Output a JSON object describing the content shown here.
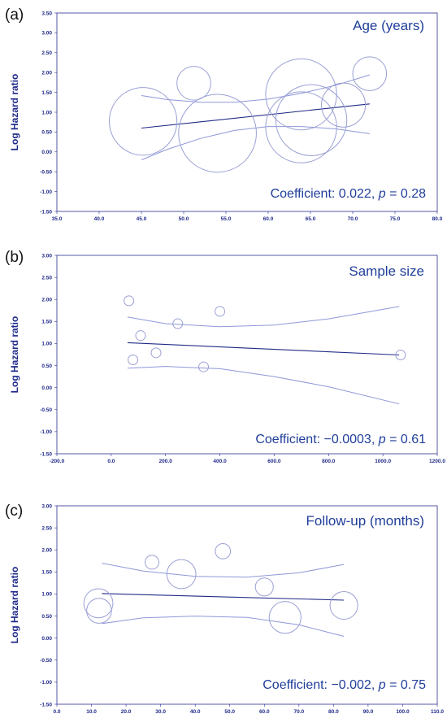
{
  "chart_data": [
    {
      "type": "scatter",
      "panel_label": "(a)",
      "title": "Age (years)",
      "ylabel": "Log Hazard ratio",
      "coefficient_prefix": "Coefficient: 0.022, ",
      "p_symbol": "p",
      "p_value": " = 0.28",
      "xlim": [
        35,
        80
      ],
      "ylim": [
        -1.5,
        3.5
      ],
      "x_ticks": [
        "35.0",
        "40.0",
        "45.0",
        "50.0",
        "55.0",
        "60.0",
        "65.0",
        "70.0",
        "75.0",
        "80.0"
      ],
      "y_ticks": [
        "3.50",
        "3.00",
        "2.50",
        "2.00",
        "1.50",
        "1.00",
        "0.50",
        "0.00",
        "-0.50",
        "-1.00",
        "-1.50"
      ],
      "points": [
        {
          "x": 45.2,
          "y": 0.77,
          "r": 4.0
        },
        {
          "x": 51.2,
          "y": 1.73,
          "r": 2.0
        },
        {
          "x": 54.0,
          "y": 0.47,
          "r": 4.6
        },
        {
          "x": 63.9,
          "y": 1.45,
          "r": 4.2
        },
        {
          "x": 63.9,
          "y": 0.62,
          "r": 4.2
        },
        {
          "x": 65.1,
          "y": 0.8,
          "r": 4.2
        },
        {
          "x": 68.9,
          "y": 1.18,
          "r": 2.6
        },
        {
          "x": 72.0,
          "y": 1.97,
          "r": 2.0
        }
      ],
      "fit_line": {
        "x": [
          45.0,
          72.0
        ],
        "y": [
          0.6,
          1.21
        ]
      },
      "ci_upper": {
        "x": [
          45.0,
          48.0,
          52.0,
          56.0,
          60.0,
          64.0,
          68.0,
          72.0
        ],
        "y": [
          1.42,
          1.32,
          1.25,
          1.25,
          1.33,
          1.48,
          1.68,
          1.94
        ]
      },
      "ci_lower": {
        "x": [
          45.0,
          48.0,
          52.0,
          56.0,
          60.0,
          64.0,
          68.0,
          72.0
        ],
        "y": [
          -0.2,
          0.06,
          0.34,
          0.54,
          0.64,
          0.64,
          0.58,
          0.46
        ]
      }
    },
    {
      "type": "scatter",
      "panel_label": "(b)",
      "title": "Sample size",
      "ylabel": "Log Hazard ratio",
      "coefficient_prefix": "Coefficient: −0.0003, ",
      "p_symbol": "p",
      "p_value": " = 0.61",
      "xlim": [
        -200,
        1200
      ],
      "ylim": [
        -1.5,
        3.0
      ],
      "x_ticks": [
        "-200.0",
        "0.0",
        "200.0",
        "400.0",
        "600.0",
        "800.0",
        "1000.0",
        "1200.0"
      ],
      "y_ticks": [
        "3.00",
        "2.50",
        "2.00",
        "1.50",
        "1.00",
        "0.50",
        "0.00",
        "-0.50",
        "-1.00",
        "-1.50"
      ],
      "points": [
        {
          "x": 65,
          "y": 1.97,
          "r": 2.0
        },
        {
          "x": 108,
          "y": 1.18,
          "r": 2.6
        },
        {
          "x": 80,
          "y": 0.63,
          "r": 4.2
        },
        {
          "x": 165,
          "y": 0.79,
          "r": 4.2
        },
        {
          "x": 245,
          "y": 1.45,
          "r": 4.2
        },
        {
          "x": 400,
          "y": 1.73,
          "r": 2.0
        },
        {
          "x": 340,
          "y": 0.47,
          "r": 4.6
        },
        {
          "x": 1065,
          "y": 0.74,
          "r": 4.0
        }
      ],
      "fit_line": {
        "x": [
          60,
          1060
        ],
        "y": [
          1.02,
          0.74
        ]
      },
      "ci_upper": {
        "x": [
          60,
          200,
          400,
          600,
          800,
          1060
        ],
        "y": [
          1.6,
          1.45,
          1.38,
          1.42,
          1.56,
          1.84
        ]
      },
      "ci_lower": {
        "x": [
          60,
          200,
          400,
          600,
          800,
          1060
        ],
        "y": [
          0.44,
          0.48,
          0.43,
          0.25,
          0.02,
          -0.37
        ]
      }
    },
    {
      "type": "scatter",
      "panel_label": "(c)",
      "title": "Follow-up (months)",
      "ylabel": "Log Hazard ratio",
      "coefficient_prefix": "Coefficient: −0.002, ",
      "p_symbol": "p",
      "p_value": " = 0.75",
      "xlim": [
        0,
        110
      ],
      "ylim": [
        -1.5,
        3.0
      ],
      "x_ticks": [
        "0.0",
        "10.0",
        "20.0",
        "30.0",
        "40.0",
        "50.0",
        "60.0",
        "70.0",
        "80.0",
        "90.0",
        "100.0",
        "110.0"
      ],
      "y_ticks": [
        "3.00",
        "2.50",
        "2.00",
        "1.50",
        "1.00",
        "0.50",
        "0.00",
        "-0.50",
        "-1.00",
        "-1.50"
      ],
      "points": [
        {
          "x": 12.0,
          "y": 0.79,
          "r": 4.2
        },
        {
          "x": 12.2,
          "y": 0.62,
          "r": 3.6
        },
        {
          "x": 27.5,
          "y": 1.72,
          "r": 2.0
        },
        {
          "x": 36.0,
          "y": 1.45,
          "r": 4.2
        },
        {
          "x": 48.0,
          "y": 1.97,
          "r": 2.2
        },
        {
          "x": 60.0,
          "y": 1.16,
          "r": 2.6
        },
        {
          "x": 66.0,
          "y": 0.47,
          "r": 4.6
        },
        {
          "x": 83.0,
          "y": 0.74,
          "r": 4.0
        }
      ],
      "fit_line": {
        "x": [
          13,
          83
        ],
        "y": [
          1.01,
          0.86
        ]
      },
      "ci_upper": {
        "x": [
          13,
          25,
          40,
          55,
          70,
          83
        ],
        "y": [
          1.7,
          1.52,
          1.4,
          1.38,
          1.48,
          1.67
        ]
      },
      "ci_lower": {
        "x": [
          13,
          25,
          40,
          55,
          70,
          83
        ],
        "y": [
          0.33,
          0.46,
          0.5,
          0.47,
          0.3,
          0.04
        ]
      }
    }
  ]
}
